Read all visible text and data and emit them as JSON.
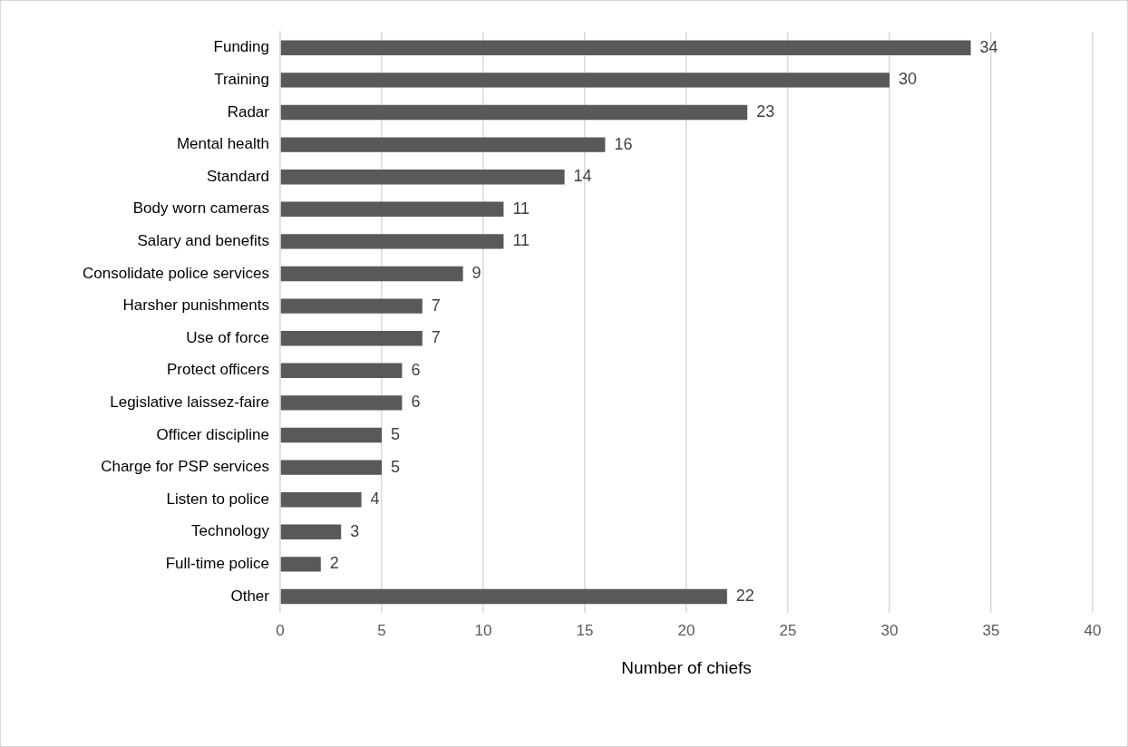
{
  "chart_data": {
    "type": "bar",
    "orientation": "horizontal",
    "xlabel": "Number of chiefs",
    "categories": [
      "Funding",
      "Training",
      "Radar",
      "Mental health",
      "Standard",
      "Body worn cameras",
      "Salary and benefits",
      "Consolidate police services",
      "Harsher punishments",
      "Use of force",
      "Protect officers",
      "Legislative laissez-faire",
      "Officer discipline",
      "Charge for PSP services",
      "Listen to police",
      "Technology",
      "Full-time police",
      "Other"
    ],
    "values": [
      34,
      30,
      23,
      16,
      14,
      11,
      11,
      9,
      7,
      7,
      6,
      6,
      5,
      5,
      4,
      3,
      2,
      22
    ],
    "color": "#595959",
    "xlim": [
      0,
      40
    ],
    "xticks": [
      0,
      5,
      10,
      15,
      20,
      25,
      30,
      35,
      40
    ],
    "grid": "x",
    "data_labels": true,
    "legend": false
  }
}
